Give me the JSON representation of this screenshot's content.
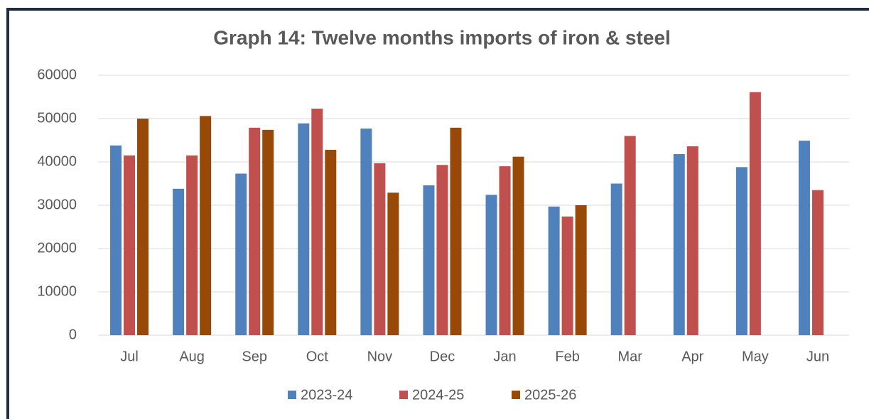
{
  "chart_data": {
    "type": "bar",
    "title": "Graph 14: Twelve months imports of iron & steel",
    "categories": [
      "Jul",
      "Aug",
      "Sep",
      "Oct",
      "Nov",
      "Dec",
      "Jan",
      "Feb",
      "Mar",
      "Apr",
      "May",
      "Jun"
    ],
    "series": [
      {
        "name": "2023-24",
        "color": "#4f81bd",
        "values": [
          43800,
          33800,
          37300,
          48900,
          47700,
          34600,
          32400,
          29700,
          35000,
          41800,
          38800,
          44900
        ]
      },
      {
        "name": "2024-25",
        "color": "#c0504d",
        "values": [
          41500,
          41500,
          47900,
          52300,
          39700,
          39300,
          39000,
          27400,
          46000,
          43600,
          56100,
          33500
        ]
      },
      {
        "name": "2025-26",
        "color": "#984807",
        "values": [
          50000,
          50600,
          47400,
          42800,
          32900,
          47900,
          41200,
          30000,
          null,
          null,
          null,
          null
        ]
      }
    ],
    "ylim": [
      0,
      60000
    ],
    "yticks": [
      0,
      10000,
      20000,
      30000,
      40000,
      50000,
      60000
    ],
    "grid": true,
    "legend": "bottom"
  }
}
